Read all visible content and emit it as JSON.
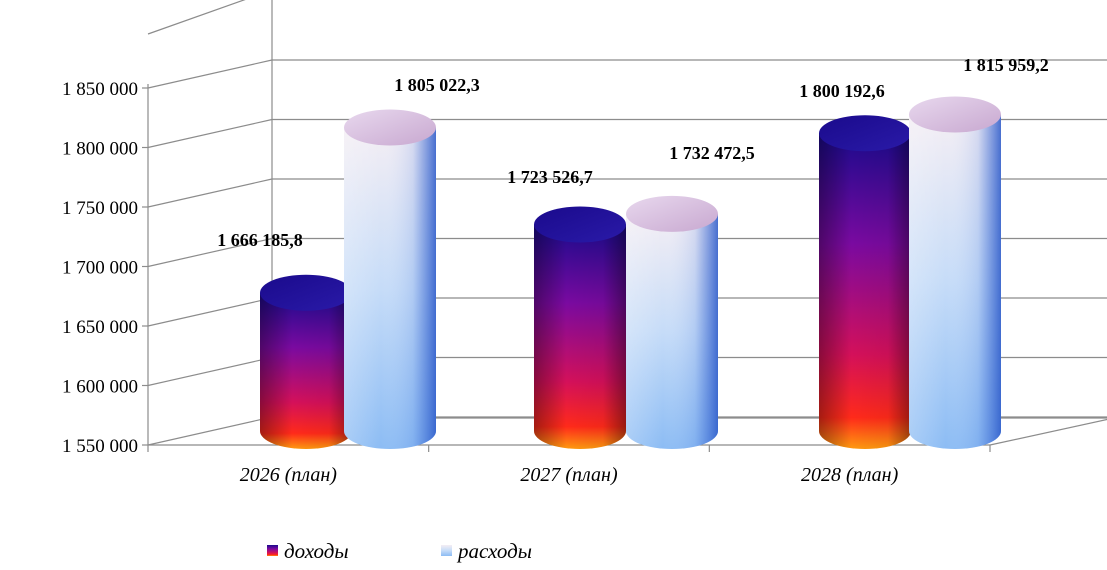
{
  "chart_data": {
    "type": "bar",
    "categories": [
      "2026 (план)",
      "2027 (план)",
      "2028 (план)"
    ],
    "series": [
      {
        "name": "доходы",
        "values": [
          1666185.8,
          1723526.7,
          1800192.6
        ],
        "labels": [
          "1 666 185,8",
          "1 723 526,7",
          "1 800 192,6"
        ]
      },
      {
        "name": "расходы",
        "values": [
          1805022.3,
          1732472.5,
          1815959.2
        ],
        "labels": [
          "1 805 022,3",
          "1 732 472,5",
          "1 815 959,2"
        ]
      }
    ],
    "ylim": [
      1550000,
      1850000
    ],
    "yticks": [
      1550000,
      1600000,
      1650000,
      1700000,
      1750000,
      1800000,
      1850000
    ],
    "ytick_labels": [
      "1 550 000",
      "1 600 000",
      "1 650 000",
      "1 700 000",
      "1 750 000",
      "1 800 000",
      "1 850 000"
    ],
    "grid": true,
    "legend": "bottom",
    "style": "3d-cylinder",
    "colors": {
      "income": [
        "#1a0a8c",
        "#7a0aa0",
        "#d4105a",
        "#ff2a1a",
        "#ff9a10"
      ],
      "expense": [
        "#ffffff",
        "#d6e6ff",
        "#8cbcf4",
        "#3a6ad6"
      ]
    }
  }
}
